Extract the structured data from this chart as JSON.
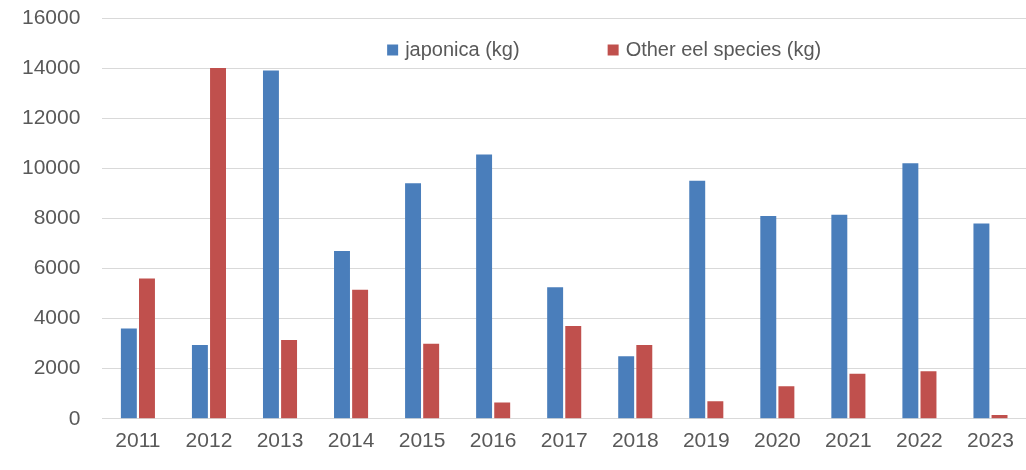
{
  "chart_data": {
    "type": "bar",
    "categories": [
      "2011",
      "2012",
      "2013",
      "2014",
      "2015",
      "2016",
      "2017",
      "2018",
      "2019",
      "2020",
      "2021",
      "2022",
      "2023"
    ],
    "series": [
      {
        "name": "japonica (kg)",
        "color": "#4a7ebb",
        "values": [
          3600,
          2950,
          13900,
          6700,
          9400,
          10550,
          5250,
          2500,
          9500,
          8100,
          8150,
          10200,
          7800
        ]
      },
      {
        "name": "Other eel species (kg)",
        "color": "#c0504d",
        "values": [
          5600,
          14000,
          3150,
          5150,
          3000,
          650,
          3700,
          2950,
          700,
          1300,
          1800,
          1900,
          150
        ]
      }
    ],
    "ylim": [
      0,
      16000
    ],
    "yticks": [
      0,
      2000,
      4000,
      6000,
      8000,
      10000,
      12000,
      14000,
      16000
    ],
    "grid": "y",
    "legend": "top"
  }
}
